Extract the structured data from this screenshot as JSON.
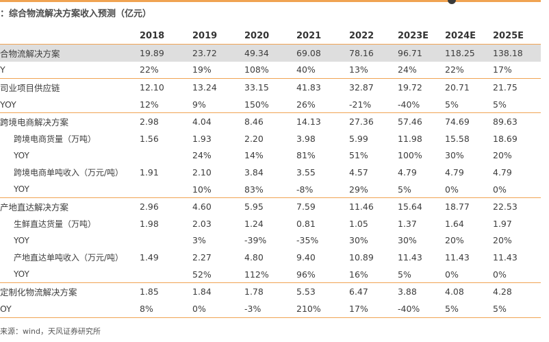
{
  "title": "：综合物流解决方案收入预测（亿元）",
  "columns": [
    "2018",
    "2019",
    "2020",
    "2021",
    "2022",
    "2023E",
    "2024E",
    "2025E"
  ],
  "rows": [
    {
      "label": "合物流解决方案",
      "values": [
        "19.89",
        "23.72",
        "49.34",
        "69.08",
        "78.16",
        "96.71",
        "118.25",
        "138.18"
      ],
      "highlight": true,
      "section": false,
      "sub": false
    },
    {
      "label": "Y",
      "values": [
        "22%",
        "19%",
        "108%",
        "40%",
        "13%",
        "24%",
        "22%",
        "17%"
      ],
      "highlight": false,
      "section": false,
      "sub": false
    },
    {
      "label": "司业项目供应链",
      "values": [
        "12.10",
        "13.24",
        "33.15",
        "41.83",
        "32.87",
        "19.72",
        "20.71",
        "21.75"
      ],
      "highlight": false,
      "section": true,
      "sub": false
    },
    {
      "label": "YOY",
      "values": [
        "12%",
        "9%",
        "150%",
        "26%",
        "-21%",
        "-40%",
        "5%",
        "5%"
      ],
      "highlight": false,
      "section": false,
      "sub": false
    },
    {
      "label": "跨境电商解决方案",
      "values": [
        "2.98",
        "4.04",
        "8.46",
        "14.13",
        "27.36",
        "57.46",
        "74.69",
        "89.63"
      ],
      "highlight": false,
      "section": true,
      "sub": false
    },
    {
      "label": "跨境电商货量（万吨）",
      "values": [
        "1.56",
        "1.93",
        "2.20",
        "3.98",
        "5.99",
        "11.98",
        "15.58",
        "18.69"
      ],
      "highlight": false,
      "section": false,
      "sub": true
    },
    {
      "label": "YOY",
      "values": [
        "",
        "24%",
        "14%",
        "81%",
        "51%",
        "100%",
        "30%",
        "20%"
      ],
      "highlight": false,
      "section": false,
      "sub": true
    },
    {
      "label": "跨境电商单吨收入（万元/吨）",
      "values": [
        "1.91",
        "2.10",
        "3.84",
        "3.55",
        "4.57",
        "4.79",
        "4.79",
        "4.79"
      ],
      "highlight": false,
      "section": false,
      "sub": true
    },
    {
      "label": "YOY",
      "values": [
        "",
        "10%",
        "83%",
        "-8%",
        "29%",
        "5%",
        "0%",
        "0%"
      ],
      "highlight": false,
      "section": false,
      "sub": true
    },
    {
      "label": "产地直达解决方案",
      "values": [
        "2.96",
        "4.60",
        "5.95",
        "7.59",
        "11.46",
        "15.64",
        "18.77",
        "22.53"
      ],
      "highlight": false,
      "section": true,
      "sub": false
    },
    {
      "label": "生鲜直达货量（万吨）",
      "values": [
        "1.98",
        "2.03",
        "1.24",
        "0.81",
        "1.05",
        "1.37",
        "1.64",
        "1.97"
      ],
      "highlight": false,
      "section": false,
      "sub": true
    },
    {
      "label": "YOY",
      "values": [
        "",
        "3%",
        "-39%",
        "-35%",
        "30%",
        "30%",
        "20%",
        "20%"
      ],
      "highlight": false,
      "section": false,
      "sub": true
    },
    {
      "label": "产地直达单吨收入（万元/吨）",
      "values": [
        "1.49",
        "2.27",
        "4.80",
        "9.40",
        "10.89",
        "11.43",
        "11.43",
        "11.43"
      ],
      "highlight": false,
      "section": false,
      "sub": true
    },
    {
      "label": "YOY",
      "values": [
        "",
        "52%",
        "112%",
        "96%",
        "16%",
        "5%",
        "0%",
        "0%"
      ],
      "highlight": false,
      "section": false,
      "sub": true
    },
    {
      "label": "定制化物流解决方案",
      "values": [
        "1.85",
        "1.84",
        "1.78",
        "5.53",
        "6.47",
        "3.88",
        "4.08",
        "4.28"
      ],
      "highlight": false,
      "section": true,
      "sub": false
    },
    {
      "label": "OY",
      "values": [
        "8%",
        "0%",
        "-3%",
        "210%",
        "17%",
        "-40%",
        "5%",
        "5%"
      ],
      "highlight": false,
      "section": false,
      "sub": false
    }
  ],
  "source": "来源：wind，天风证券研究所"
}
